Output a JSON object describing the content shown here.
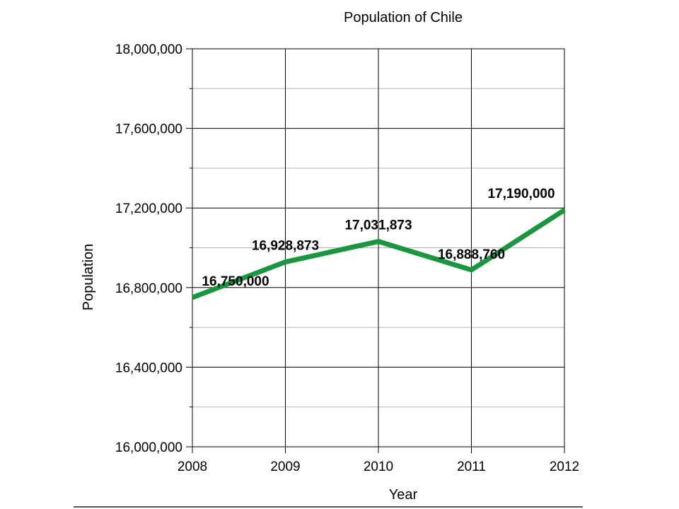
{
  "chart_data": {
    "type": "line",
    "title": "Population of Chile",
    "xlabel": "Year",
    "ylabel": "Population",
    "x": [
      "2008",
      "2009",
      "2010",
      "2011",
      "2012"
    ],
    "ylim": [
      16000000,
      18000000
    ],
    "y_major_ticks": [
      16000000,
      16400000,
      16800000,
      17200000,
      17600000,
      18000000
    ],
    "y_tick_labels": [
      "16,000,000",
      "16,400,000",
      "16,800,000",
      "17,200,000",
      "17,600,000",
      "18,000,000"
    ],
    "grid": true,
    "legend": "none",
    "series": [
      {
        "values": [
          16750000,
          16928873,
          17031873,
          16888760,
          17190000
        ],
        "data_labels": [
          "16,750,000",
          "16,928,873",
          "17,031,873",
          "16,888,760",
          "17,190,000"
        ],
        "color": "#1a9641"
      }
    ]
  }
}
